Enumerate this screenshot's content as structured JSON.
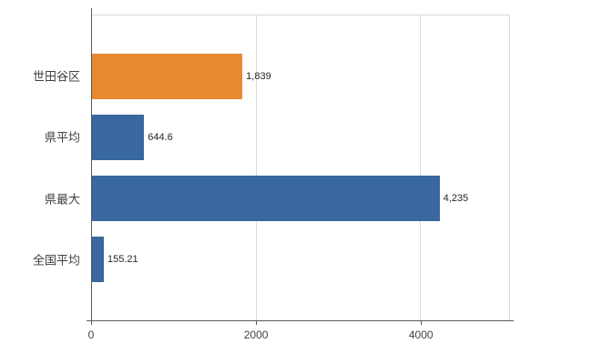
{
  "chart_data": {
    "type": "bar",
    "orientation": "horizontal",
    "title": "",
    "xlabel": "",
    "ylabel": "",
    "categories": [
      "世田谷区",
      "県平均",
      "県最大",
      "全国平均"
    ],
    "values": [
      1839,
      644.6,
      4235,
      155.21
    ],
    "value_labels": [
      "1,839",
      "644.6",
      "4,235",
      "155.21"
    ],
    "bar_colors": [
      "#E8882F",
      "#38689E",
      "#38689E",
      "#38689E"
    ],
    "xlim": [
      0,
      5080
    ],
    "x_ticks": [
      0,
      2000,
      4000
    ],
    "x_tick_labels": [
      "0",
      "2000",
      "4000"
    ],
    "grid": "vertical",
    "legend": "none"
  },
  "colors": {
    "orange": "#E8882F",
    "blue": "#38689E",
    "gridline": "#D9D9D9",
    "axis": "#595959",
    "text": "#404040",
    "background": "#FFFFFF"
  }
}
